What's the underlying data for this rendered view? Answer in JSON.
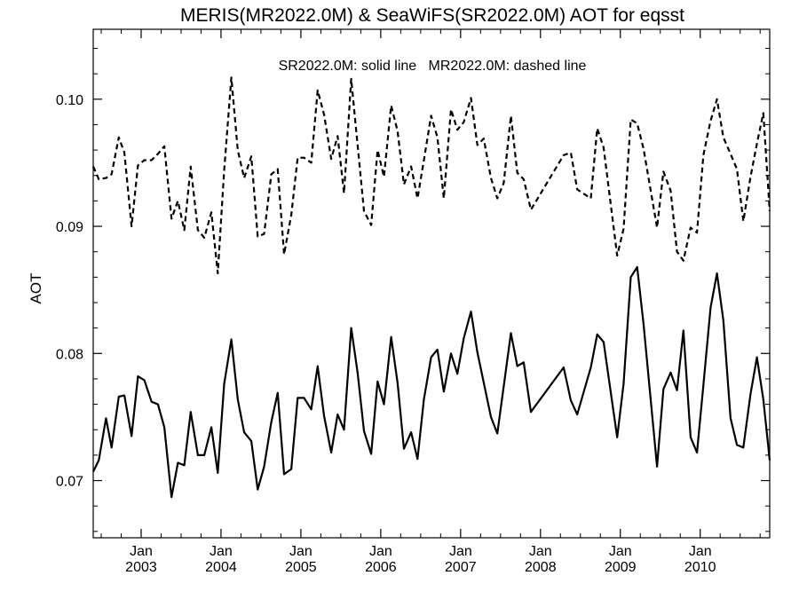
{
  "chart_data": {
    "type": "line",
    "title": "MERIS(MR2022.0M) & SeaWiFS(SR2022.0M)  AOT for eqsst",
    "ylabel": "AOT",
    "xlabel": "",
    "annotation": "SR2022.0M: solid line   MR2022.0M: dashed line",
    "xlim": [
      2002.4,
      2010.87
    ],
    "ylim": [
      0.0655,
      0.1055
    ],
    "grid": false,
    "yticks": [
      {
        "value": 0.07,
        "label": "0.07"
      },
      {
        "value": 0.08,
        "label": "0.08"
      },
      {
        "value": 0.09,
        "label": "0.09"
      },
      {
        "value": 0.1,
        "label": "0.10"
      }
    ],
    "xticks": [
      {
        "value": 2003.0,
        "month": "Jan",
        "year": "2003"
      },
      {
        "value": 2004.0,
        "month": "Jan",
        "year": "2004"
      },
      {
        "value": 2005.0,
        "month": "Jan",
        "year": "2005"
      },
      {
        "value": 2006.0,
        "month": "Jan",
        "year": "2006"
      },
      {
        "value": 2007.0,
        "month": "Jan",
        "year": "2007"
      },
      {
        "value": 2008.0,
        "month": "Jan",
        "year": "2008"
      },
      {
        "value": 2009.0,
        "month": "Jan",
        "year": "2009"
      },
      {
        "value": 2010.0,
        "month": "Jan",
        "year": "2010"
      }
    ],
    "series": [
      {
        "name": "SR2022.0M",
        "style": "solid",
        "color": "#000000",
        "points": [
          [
            2002.4,
            0.0707
          ],
          [
            2002.47,
            0.0716
          ],
          [
            2002.56,
            0.0749
          ],
          [
            2002.63,
            0.0726
          ],
          [
            2002.72,
            0.0766
          ],
          [
            2002.79,
            0.0767
          ],
          [
            2002.88,
            0.0735
          ],
          [
            2002.96,
            0.0782
          ],
          [
            2003.04,
            0.0779
          ],
          [
            2003.13,
            0.0762
          ],
          [
            2003.21,
            0.076
          ],
          [
            2003.29,
            0.0742
          ],
          [
            2003.38,
            0.0687
          ],
          [
            2003.46,
            0.0714
          ],
          [
            2003.54,
            0.0712
          ],
          [
            2003.62,
            0.0754
          ],
          [
            2003.71,
            0.072
          ],
          [
            2003.79,
            0.072
          ],
          [
            2003.88,
            0.0742
          ],
          [
            2003.96,
            0.0706
          ],
          [
            2004.04,
            0.0776
          ],
          [
            2004.13,
            0.0811
          ],
          [
            2004.21,
            0.0764
          ],
          [
            2004.29,
            0.0738
          ],
          [
            2004.38,
            0.0731
          ],
          [
            2004.46,
            0.0693
          ],
          [
            2004.54,
            0.0711
          ],
          [
            2004.63,
            0.0746
          ],
          [
            2004.71,
            0.0769
          ],
          [
            2004.79,
            0.0705
          ],
          [
            2004.88,
            0.0709
          ],
          [
            2004.96,
            0.0765
          ],
          [
            2005.04,
            0.0765
          ],
          [
            2005.13,
            0.0756
          ],
          [
            2005.21,
            0.079
          ],
          [
            2005.29,
            0.0751
          ],
          [
            2005.38,
            0.0722
          ],
          [
            2005.46,
            0.0752
          ],
          [
            2005.54,
            0.074
          ],
          [
            2005.63,
            0.082
          ],
          [
            2005.71,
            0.0785
          ],
          [
            2005.79,
            0.0739
          ],
          [
            2005.88,
            0.0721
          ],
          [
            2005.96,
            0.0778
          ],
          [
            2006.04,
            0.076
          ],
          [
            2006.13,
            0.0813
          ],
          [
            2006.21,
            0.0777
          ],
          [
            2006.29,
            0.0725
          ],
          [
            2006.38,
            0.0738
          ],
          [
            2006.46,
            0.0717
          ],
          [
            2006.54,
            0.0764
          ],
          [
            2006.63,
            0.0797
          ],
          [
            2006.71,
            0.0803
          ],
          [
            2006.79,
            0.077
          ],
          [
            2006.88,
            0.08
          ],
          [
            2006.96,
            0.0784
          ],
          [
            2007.04,
            0.0812
          ],
          [
            2007.13,
            0.0833
          ],
          [
            2007.21,
            0.0801
          ],
          [
            2007.38,
            0.075
          ],
          [
            2007.46,
            0.0737
          ],
          [
            2007.63,
            0.0816
          ],
          [
            2007.71,
            0.079
          ],
          [
            2007.79,
            0.0793
          ],
          [
            2007.88,
            0.0754
          ],
          [
            2008.29,
            0.0789
          ],
          [
            2008.38,
            0.0763
          ],
          [
            2008.46,
            0.0752
          ],
          [
            2008.63,
            0.0789
          ],
          [
            2008.71,
            0.0815
          ],
          [
            2008.79,
            0.0809
          ],
          [
            2008.96,
            0.0734
          ],
          [
            2009.04,
            0.0776
          ],
          [
            2009.13,
            0.086
          ],
          [
            2009.21,
            0.0868
          ],
          [
            2009.29,
            0.0823
          ],
          [
            2009.46,
            0.0711
          ],
          [
            2009.54,
            0.0772
          ],
          [
            2009.63,
            0.0785
          ],
          [
            2009.71,
            0.0771
          ],
          [
            2009.79,
            0.0818
          ],
          [
            2009.88,
            0.0734
          ],
          [
            2009.96,
            0.0722
          ],
          [
            2010.04,
            0.0775
          ],
          [
            2010.13,
            0.0836
          ],
          [
            2010.21,
            0.0863
          ],
          [
            2010.29,
            0.0826
          ],
          [
            2010.38,
            0.0749
          ],
          [
            2010.46,
            0.0728
          ],
          [
            2010.54,
            0.0726
          ],
          [
            2010.63,
            0.0768
          ],
          [
            2010.71,
            0.0797
          ],
          [
            2010.79,
            0.0764
          ],
          [
            2010.87,
            0.0716
          ]
        ]
      },
      {
        "name": "MR2022.0M",
        "style": "dashed",
        "color": "#000000",
        "points": [
          [
            2002.4,
            0.0947
          ],
          [
            2002.47,
            0.0937
          ],
          [
            2002.56,
            0.0938
          ],
          [
            2002.63,
            0.0941
          ],
          [
            2002.72,
            0.097
          ],
          [
            2002.79,
            0.0958
          ],
          [
            2002.88,
            0.09
          ],
          [
            2002.96,
            0.0948
          ],
          [
            2003.04,
            0.0952
          ],
          [
            2003.13,
            0.0952
          ],
          [
            2003.21,
            0.0957
          ],
          [
            2003.29,
            0.0963
          ],
          [
            2003.38,
            0.0906
          ],
          [
            2003.46,
            0.092
          ],
          [
            2003.54,
            0.0897
          ],
          [
            2003.62,
            0.0947
          ],
          [
            2003.71,
            0.0897
          ],
          [
            2003.79,
            0.0891
          ],
          [
            2003.88,
            0.0911
          ],
          [
            2003.96,
            0.0863
          ],
          [
            2004.04,
            0.0944
          ],
          [
            2004.13,
            0.1017
          ],
          [
            2004.21,
            0.096
          ],
          [
            2004.29,
            0.0938
          ],
          [
            2004.38,
            0.0955
          ],
          [
            2004.46,
            0.0892
          ],
          [
            2004.54,
            0.0894
          ],
          [
            2004.63,
            0.0941
          ],
          [
            2004.71,
            0.0945
          ],
          [
            2004.79,
            0.0878
          ],
          [
            2004.88,
            0.0909
          ],
          [
            2004.96,
            0.0954
          ],
          [
            2005.04,
            0.0954
          ],
          [
            2005.13,
            0.095
          ],
          [
            2005.21,
            0.1007
          ],
          [
            2005.29,
            0.0988
          ],
          [
            2005.38,
            0.0953
          ],
          [
            2005.46,
            0.0971
          ],
          [
            2005.54,
            0.0926
          ],
          [
            2005.63,
            0.1016
          ],
          [
            2005.71,
            0.0964
          ],
          [
            2005.79,
            0.0912
          ],
          [
            2005.88,
            0.0901
          ],
          [
            2005.96,
            0.096
          ],
          [
            2006.04,
            0.0939
          ],
          [
            2006.13,
            0.0995
          ],
          [
            2006.21,
            0.0975
          ],
          [
            2006.29,
            0.0933
          ],
          [
            2006.38,
            0.0947
          ],
          [
            2006.46,
            0.0922
          ],
          [
            2006.54,
            0.0952
          ],
          [
            2006.63,
            0.0987
          ],
          [
            2006.71,
            0.097
          ],
          [
            2006.79,
            0.0922
          ],
          [
            2006.88,
            0.0992
          ],
          [
            2006.96,
            0.0976
          ],
          [
            2007.04,
            0.0982
          ],
          [
            2007.13,
            0.1001
          ],
          [
            2007.21,
            0.0964
          ],
          [
            2007.29,
            0.0969
          ],
          [
            2007.38,
            0.0938
          ],
          [
            2007.46,
            0.0922
          ],
          [
            2007.54,
            0.0934
          ],
          [
            2007.63,
            0.0987
          ],
          [
            2007.71,
            0.0942
          ],
          [
            2007.79,
            0.0937
          ],
          [
            2007.88,
            0.0913
          ],
          [
            2008.29,
            0.0956
          ],
          [
            2008.38,
            0.0958
          ],
          [
            2008.46,
            0.0929
          ],
          [
            2008.63,
            0.0922
          ],
          [
            2008.71,
            0.0977
          ],
          [
            2008.79,
            0.0962
          ],
          [
            2008.96,
            0.0877
          ],
          [
            2009.04,
            0.0898
          ],
          [
            2009.13,
            0.0984
          ],
          [
            2009.21,
            0.0981
          ],
          [
            2009.29,
            0.0961
          ],
          [
            2009.46,
            0.0899
          ],
          [
            2009.54,
            0.0943
          ],
          [
            2009.63,
            0.0928
          ],
          [
            2009.71,
            0.088
          ],
          [
            2009.79,
            0.0873
          ],
          [
            2009.88,
            0.0899
          ],
          [
            2009.96,
            0.0895
          ],
          [
            2010.04,
            0.0956
          ],
          [
            2010.13,
            0.0983
          ],
          [
            2010.21,
            0.1
          ],
          [
            2010.29,
            0.097
          ],
          [
            2010.38,
            0.0957
          ],
          [
            2010.46,
            0.0945
          ],
          [
            2010.54,
            0.0904
          ],
          [
            2010.63,
            0.0939
          ],
          [
            2010.71,
            0.0965
          ],
          [
            2010.79,
            0.0989
          ],
          [
            2010.87,
            0.0912
          ]
        ]
      }
    ]
  }
}
